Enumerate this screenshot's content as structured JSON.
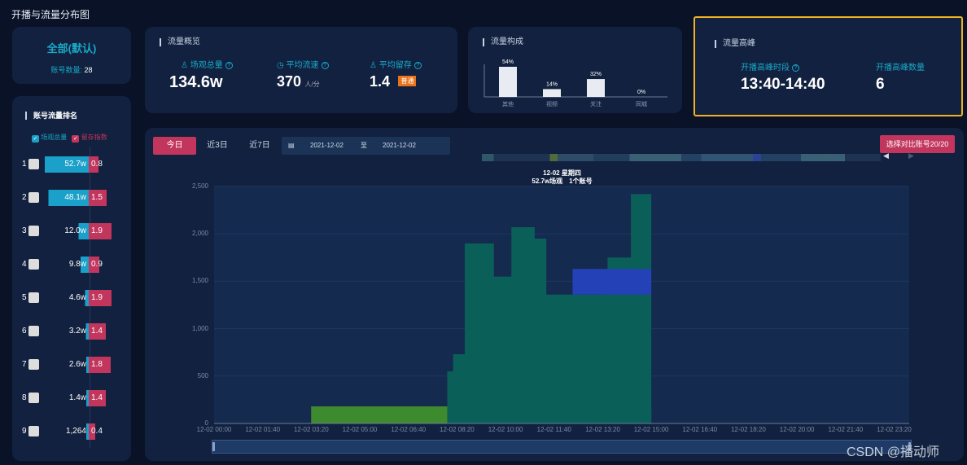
{
  "page_title": "开播与流量分布图",
  "account_card": {
    "title": "全部(默认)",
    "count_label": "账号数量:",
    "count_value": "28"
  },
  "overview": {
    "title": "流量概览",
    "metrics": [
      {
        "label": "场观总量",
        "value": "134.6w",
        "unit": ""
      },
      {
        "label": "平均流速",
        "value": "370",
        "unit": "人/分"
      },
      {
        "label": "平均留存",
        "value": "1.4",
        "unit": "",
        "badge": "普通"
      }
    ]
  },
  "composition": {
    "title": "流量构成",
    "items": [
      {
        "label": "其他",
        "pct": "54%",
        "value": 54
      },
      {
        "label": "视频",
        "pct": "14%",
        "value": 14
      },
      {
        "label": "关注",
        "pct": "32%",
        "value": 32
      },
      {
        "label": "同城",
        "pct": "0%",
        "value": 0
      }
    ]
  },
  "peak": {
    "title": "流量高峰",
    "period_label": "开播高峰时段",
    "period_value": "13:40-14:40",
    "count_label": "开播高峰数量",
    "count_value": "6"
  },
  "ranking": {
    "title": "账号流量排名",
    "legend": [
      "场观总量",
      "留存指数"
    ],
    "rows": [
      {
        "rank": "1",
        "views": "52.7w",
        "views_num": 52.7,
        "ret": "0.8",
        "ret_num": 0.8
      },
      {
        "rank": "2",
        "views": "48.1w",
        "views_num": 48.1,
        "ret": "1.5",
        "ret_num": 1.5
      },
      {
        "rank": "3",
        "views": "12.0w",
        "views_num": 12.0,
        "ret": "1.9",
        "ret_num": 1.9
      },
      {
        "rank": "4",
        "views": "9.8w",
        "views_num": 9.8,
        "ret": "0.9",
        "ret_num": 0.9
      },
      {
        "rank": "5",
        "views": "4.6w",
        "views_num": 4.6,
        "ret": "1.9",
        "ret_num": 1.9
      },
      {
        "rank": "6",
        "views": "3.2w",
        "views_num": 3.2,
        "ret": "1.4",
        "ret_num": 1.4
      },
      {
        "rank": "7",
        "views": "2.6w",
        "views_num": 2.6,
        "ret": "1.8",
        "ret_num": 1.8
      },
      {
        "rank": "8",
        "views": "1.4w",
        "views_num": 1.4,
        "ret": "1.4",
        "ret_num": 1.4
      },
      {
        "rank": "9",
        "views": "1,264",
        "views_num": 0.13,
        "ret": "0.4",
        "ret_num": 0.4
      }
    ]
  },
  "filters": {
    "tabs": [
      "今日",
      "近3日",
      "近7日"
    ],
    "date_from": "2021-12-02",
    "date_sep": "至",
    "date_to": "2021-12-02",
    "compare_button": "选择对比账号20/20"
  },
  "tooltip": {
    "line1": "12-02 星期四",
    "line2": "52.7w场观　1个账号"
  },
  "chart_data": {
    "type": "area",
    "ylim": [
      0,
      2500
    ],
    "yticks": [
      "0",
      "500",
      "1,000",
      "1,500",
      "2,000",
      "2,500"
    ],
    "xticks": [
      "12-02 00:00",
      "12-02 01:40",
      "12-02 03:20",
      "12-02 05:00",
      "12-02 06:40",
      "12-02 08:20",
      "12-02 10:00",
      "12-02 11:40",
      "12-02 13:20",
      "12-02 15:00",
      "12-02 16:40",
      "12-02 18:20",
      "12-02 20:00",
      "12-02 21:40",
      "12-02 23:20"
    ],
    "series": [
      {
        "color": "#3e8a2e",
        "points": [
          [
            3.33,
            180
          ],
          [
            15.0,
            180
          ]
        ]
      },
      {
        "color": "#0b5f59",
        "points": [
          [
            8.0,
            550
          ],
          [
            8.2,
            730
          ],
          [
            8.6,
            1900
          ],
          [
            9.3,
            1900
          ],
          [
            9.6,
            1550
          ],
          [
            10.2,
            2070
          ],
          [
            10.6,
            2070
          ],
          [
            11.0,
            1950
          ],
          [
            11.4,
            1360
          ],
          [
            13.3,
            1360
          ],
          [
            13.5,
            1750
          ],
          [
            14.3,
            2420
          ],
          [
            14.8,
            2420
          ],
          [
            15.0,
            2460
          ]
        ]
      },
      {
        "color": "#2541b8",
        "points": [
          [
            12.3,
            1630
          ],
          [
            15.0,
            1630
          ]
        ]
      }
    ],
    "watermark": "CSDN @播动师"
  },
  "colors": {
    "accent_red": "#c2365e",
    "accent_blue": "#1aa0c9",
    "highlight": "#f0b323"
  }
}
